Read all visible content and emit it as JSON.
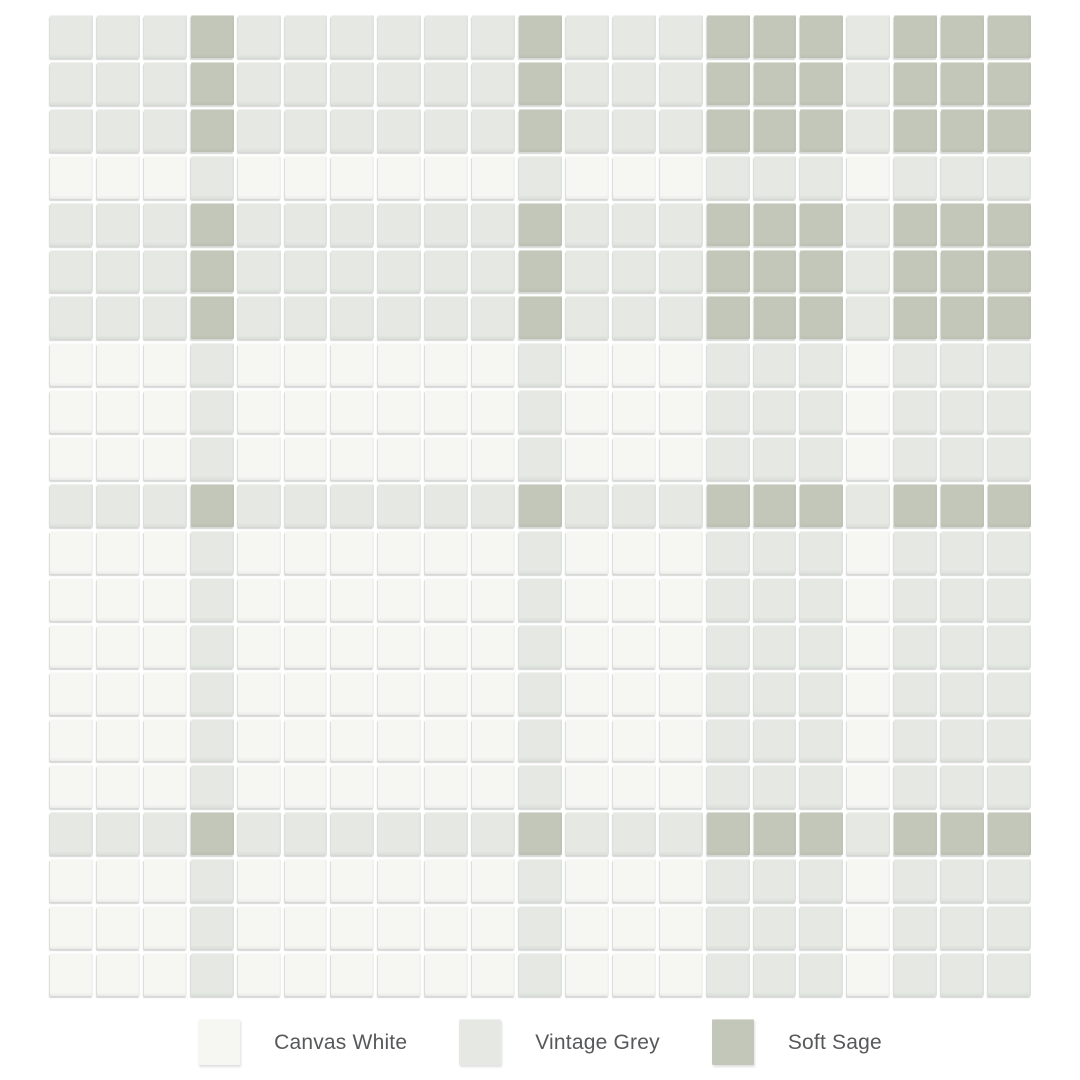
{
  "page": {
    "background": "#ffffff"
  },
  "legend": {
    "items": [
      {
        "name": "canvas-white",
        "label": "Canvas White",
        "color": "#f6f6f3"
      },
      {
        "name": "vintage-grey",
        "label": "Vintage Grey",
        "color": "#e5e8e3"
      },
      {
        "name": "soft-sage",
        "label": "Soft Sage",
        "color": "#c3c7b9"
      }
    ]
  },
  "mosaic": {
    "columns": 21,
    "rows_count": 21,
    "palette": {
      "W": "#f6f6f3",
      "G": "#e5e8e3",
      "S": "#c3c7b9"
    },
    "palette_names": {
      "W": "Canvas White",
      "G": "Vintage Grey",
      "S": "Soft Sage"
    },
    "rows": [
      "GGGSGGGGGGSGGGSSSGSSS",
      "GGGSGGGGGGSGGGSSSGSSS",
      "GGGSGGGGGGSGGGSSSGSSS",
      "WWWGWWWWWWGWWWGGGWGGG",
      "GGGSGGGGGGSGGGSSSGSSS",
      "GGGSGGGGGGSGGGSSSGSSS",
      "GGGSGGGGGGSGGGSSSGSSS",
      "WWWGWWWWWWGWWWGGGWGGG",
      "WWWGWWWWWWGWWWGGGWGGG",
      "WWWGWWWWWWGWWWGGGWGGG",
      "GGGSGGGGGGSGGGSSSGSSS",
      "WWWGWWWWWWGWWWGGGWGGG",
      "WWWGWWWWWWGWWWGGGWGGG",
      "WWWGWWWWWWGWWWGGGWGGG",
      "WWWGWWWWWWGWWWGGGWGGG",
      "WWWGWWWWWWGWWWGGGWGGG",
      "WWWGWWWWWWGWWWGGGWGGG",
      "GGGSGGGGGGSGGGSSSGSSS",
      "WWWGWWWWWWGWWWGGGWGGG",
      "WWWGWWWWWWGWWWGGGWGGG",
      "WWWGWWWWWWGWWWGGGWGGG"
    ]
  }
}
